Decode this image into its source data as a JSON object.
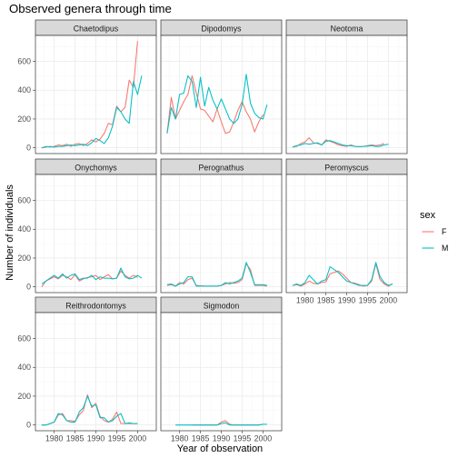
{
  "chart_data": {
    "type": "line",
    "title": "Observed genera through time",
    "xlabel": "Year of observation",
    "ylabel": "Number of individuals",
    "xlim": [
      1975.5,
      2004.5
    ],
    "ylim": [
      -40,
      780
    ],
    "x_ticks": [
      1980,
      1985,
      1990,
      1995,
      2000
    ],
    "y_ticks": [
      0,
      200,
      400,
      600
    ],
    "grid": true,
    "legend": {
      "title": "sex",
      "position": "right"
    },
    "series_def": [
      {
        "name": "F",
        "color": "#F8766D"
      },
      {
        "name": "M",
        "color": "#00BFC4"
      }
    ],
    "years": [
      1977,
      1978,
      1979,
      1980,
      1981,
      1982,
      1983,
      1984,
      1985,
      1986,
      1987,
      1988,
      1989,
      1990,
      1991,
      1992,
      1993,
      1994,
      1995,
      1996,
      1997,
      1998,
      1999,
      2000,
      2001,
      2002
    ],
    "facets": [
      {
        "name": "Chaetodipus",
        "F": [
          0,
          10,
          5,
          10,
          20,
          15,
          25,
          10,
          25,
          30,
          15,
          30,
          55,
          40,
          60,
          100,
          170,
          160,
          290,
          250,
          280,
          470,
          420,
          740,
          null,
          null
        ],
        "M": [
          0,
          5,
          10,
          5,
          10,
          10,
          15,
          20,
          15,
          20,
          25,
          15,
          35,
          65,
          50,
          30,
          70,
          150,
          280,
          250,
          200,
          170,
          460,
          370,
          500,
          null
        ]
      },
      {
        "name": "Dipodomys",
        "F": [
          100,
          350,
          200,
          260,
          320,
          370,
          500,
          380,
          270,
          260,
          220,
          180,
          270,
          180,
          100,
          110,
          180,
          260,
          320,
          250,
          200,
          110,
          180,
          230,
          null,
          null
        ],
        "M": [
          100,
          280,
          200,
          370,
          380,
          500,
          460,
          280,
          490,
          290,
          420,
          330,
          270,
          340,
          270,
          200,
          170,
          200,
          300,
          510,
          310,
          240,
          210,
          200,
          300,
          null
        ]
      },
      {
        "name": "Neotoma",
        "F": [
          5,
          10,
          30,
          40,
          70,
          35,
          30,
          20,
          55,
          45,
          35,
          20,
          15,
          10,
          20,
          10,
          8,
          10,
          15,
          20,
          15,
          20,
          30,
          null,
          null,
          null
        ],
        "M": [
          5,
          15,
          20,
          30,
          25,
          30,
          35,
          20,
          45,
          50,
          40,
          30,
          20,
          15,
          15,
          10,
          8,
          10,
          12,
          15,
          10,
          10,
          20,
          25,
          null,
          null
        ]
      },
      {
        "name": "Onychomys",
        "F": [
          0,
          40,
          55,
          70,
          55,
          80,
          70,
          50,
          85,
          40,
          55,
          65,
          70,
          80,
          50,
          70,
          85,
          55,
          60,
          110,
          80,
          60,
          80,
          65,
          null,
          null
        ],
        "M": [
          20,
          40,
          60,
          80,
          60,
          90,
          60,
          80,
          90,
          50,
          60,
          60,
          80,
          50,
          70,
          60,
          60,
          55,
          60,
          130,
          70,
          55,
          60,
          80,
          60,
          null
        ]
      },
      {
        "name": "Perognathus",
        "F": [
          10,
          15,
          5,
          30,
          20,
          50,
          60,
          10,
          8,
          5,
          5,
          5,
          5,
          10,
          20,
          30,
          25,
          30,
          50,
          160,
          120,
          10,
          10,
          10,
          5,
          null
        ],
        "M": [
          15,
          20,
          5,
          20,
          30,
          70,
          70,
          5,
          5,
          5,
          5,
          5,
          5,
          10,
          30,
          20,
          30,
          40,
          60,
          170,
          100,
          15,
          15,
          15,
          10,
          null
        ]
      },
      {
        "name": "Peromyscus",
        "F": [
          10,
          15,
          5,
          20,
          40,
          25,
          20,
          30,
          35,
          90,
          100,
          110,
          90,
          60,
          30,
          25,
          15,
          5,
          10,
          40,
          160,
          50,
          20,
          5,
          20,
          null
        ],
        "M": [
          10,
          20,
          10,
          30,
          80,
          50,
          20,
          40,
          50,
          140,
          120,
          100,
          70,
          40,
          30,
          20,
          10,
          10,
          10,
          50,
          170,
          70,
          30,
          10,
          20,
          null
        ]
      },
      {
        "name": "Reithrodontomys",
        "F": [
          0,
          0,
          10,
          20,
          70,
          80,
          30,
          30,
          25,
          70,
          100,
          210,
          120,
          150,
          60,
          30,
          20,
          40,
          90,
          10,
          10,
          10,
          10,
          10,
          null,
          null
        ],
        "M": [
          0,
          0,
          10,
          20,
          80,
          70,
          30,
          20,
          20,
          90,
          120,
          200,
          130,
          140,
          50,
          50,
          20,
          30,
          60,
          80,
          10,
          15,
          10,
          10,
          null,
          null
        ]
      },
      {
        "name": "Sigmodon",
        "F": [
          null,
          null,
          null,
          null,
          null,
          null,
          0,
          0,
          0,
          0,
          0,
          0,
          0,
          20,
          30,
          5,
          0,
          0,
          0,
          0,
          0,
          0,
          0,
          5,
          null,
          null
        ],
        "M": [
          null,
          null,
          0,
          0,
          0,
          0,
          0,
          0,
          0,
          0,
          0,
          0,
          0,
          10,
          15,
          0,
          0,
          0,
          0,
          0,
          0,
          0,
          0,
          5,
          5,
          null
        ]
      }
    ]
  }
}
